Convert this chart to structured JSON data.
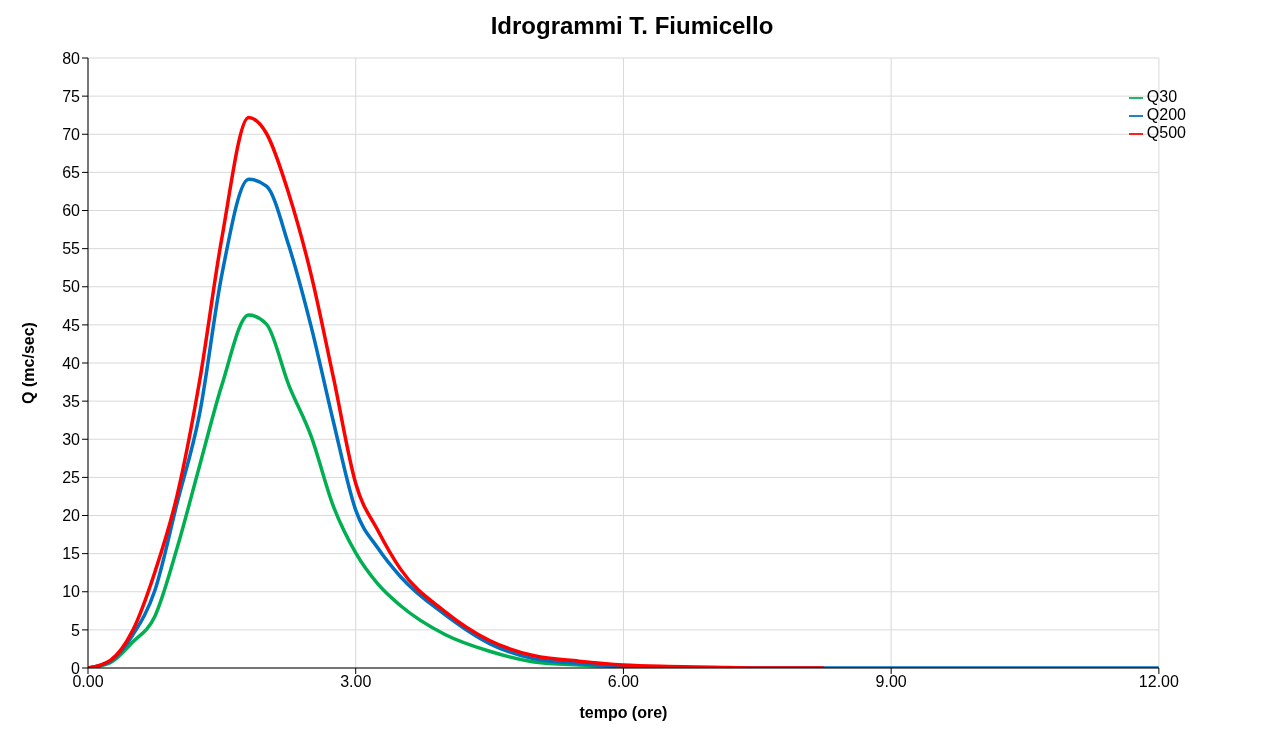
{
  "chart_data": {
    "type": "line",
    "title": "Idrogrammi T. Fiumicello",
    "xlabel": "tempo (ore)",
    "ylabel": "Q (mc/sec)",
    "xlim": [
      0,
      12
    ],
    "xticks": [
      {
        "value": 0,
        "label": "0.00"
      },
      {
        "value": 3,
        "label": "3.00"
      },
      {
        "value": 6,
        "label": "6.00"
      },
      {
        "value": 9,
        "label": "9.00"
      },
      {
        "value": 12,
        "label": "12.00"
      }
    ],
    "ylim": [
      0,
      80
    ],
    "yticks": [
      0,
      5,
      10,
      15,
      20,
      25,
      30,
      35,
      40,
      45,
      50,
      55,
      60,
      65,
      70,
      75,
      80
    ],
    "grid": true,
    "legend": "top right",
    "marker": "none",
    "line_style": "solid",
    "series": [
      {
        "name": "Q30",
        "color": "#00b050",
        "x": [
          0,
          0.25,
          0.5,
          0.75,
          1,
          1.25,
          1.5,
          1.8,
          2,
          2.25,
          2.5,
          2.75,
          3,
          3.25,
          3.5,
          4,
          4.5,
          5,
          5.5,
          6
        ],
        "values": [
          0,
          0.7,
          3.4,
          6.8,
          15.8,
          26.5,
          37.1,
          46.3,
          45.1,
          37.1,
          30.4,
          21.2,
          15.1,
          11,
          8.2,
          4.4,
          2.2,
          0.8,
          0.4,
          0.2
        ]
      },
      {
        "name": "Q200",
        "color": "#0070c0",
        "x": [
          0,
          0.25,
          0.5,
          0.75,
          1,
          1.25,
          1.5,
          1.8,
          2,
          2.25,
          2.5,
          2.75,
          3,
          3.25,
          3.5,
          4,
          4.5,
          5,
          5.5,
          6,
          6.5,
          7,
          7.5,
          8.25,
          9,
          12
        ],
        "values": [
          0,
          0.9,
          4.3,
          10.2,
          21.7,
          33.3,
          51.6,
          64.1,
          63.2,
          55.4,
          44.8,
          32.3,
          20.7,
          15.7,
          12,
          7,
          3.2,
          1.2,
          0.6,
          0.2,
          0.1,
          0,
          0,
          0,
          0,
          0
        ]
      },
      {
        "name": "Q500",
        "color": "#ff0000",
        "x": [
          0,
          0.25,
          0.5,
          0.75,
          1,
          1.25,
          1.5,
          1.8,
          2,
          2.25,
          2.5,
          2.75,
          3,
          3.25,
          3.5,
          4,
          4.5,
          5,
          5.5,
          6,
          6.5,
          7,
          7.5,
          8.25
        ],
        "values": [
          0,
          1,
          4.9,
          12.6,
          22.7,
          37.6,
          56.4,
          72.2,
          70.1,
          62.2,
          51.6,
          38.1,
          24.2,
          18,
          13,
          7.4,
          3.6,
          1.6,
          0.9,
          0.4,
          0.2,
          0.1,
          0,
          0
        ]
      }
    ]
  }
}
